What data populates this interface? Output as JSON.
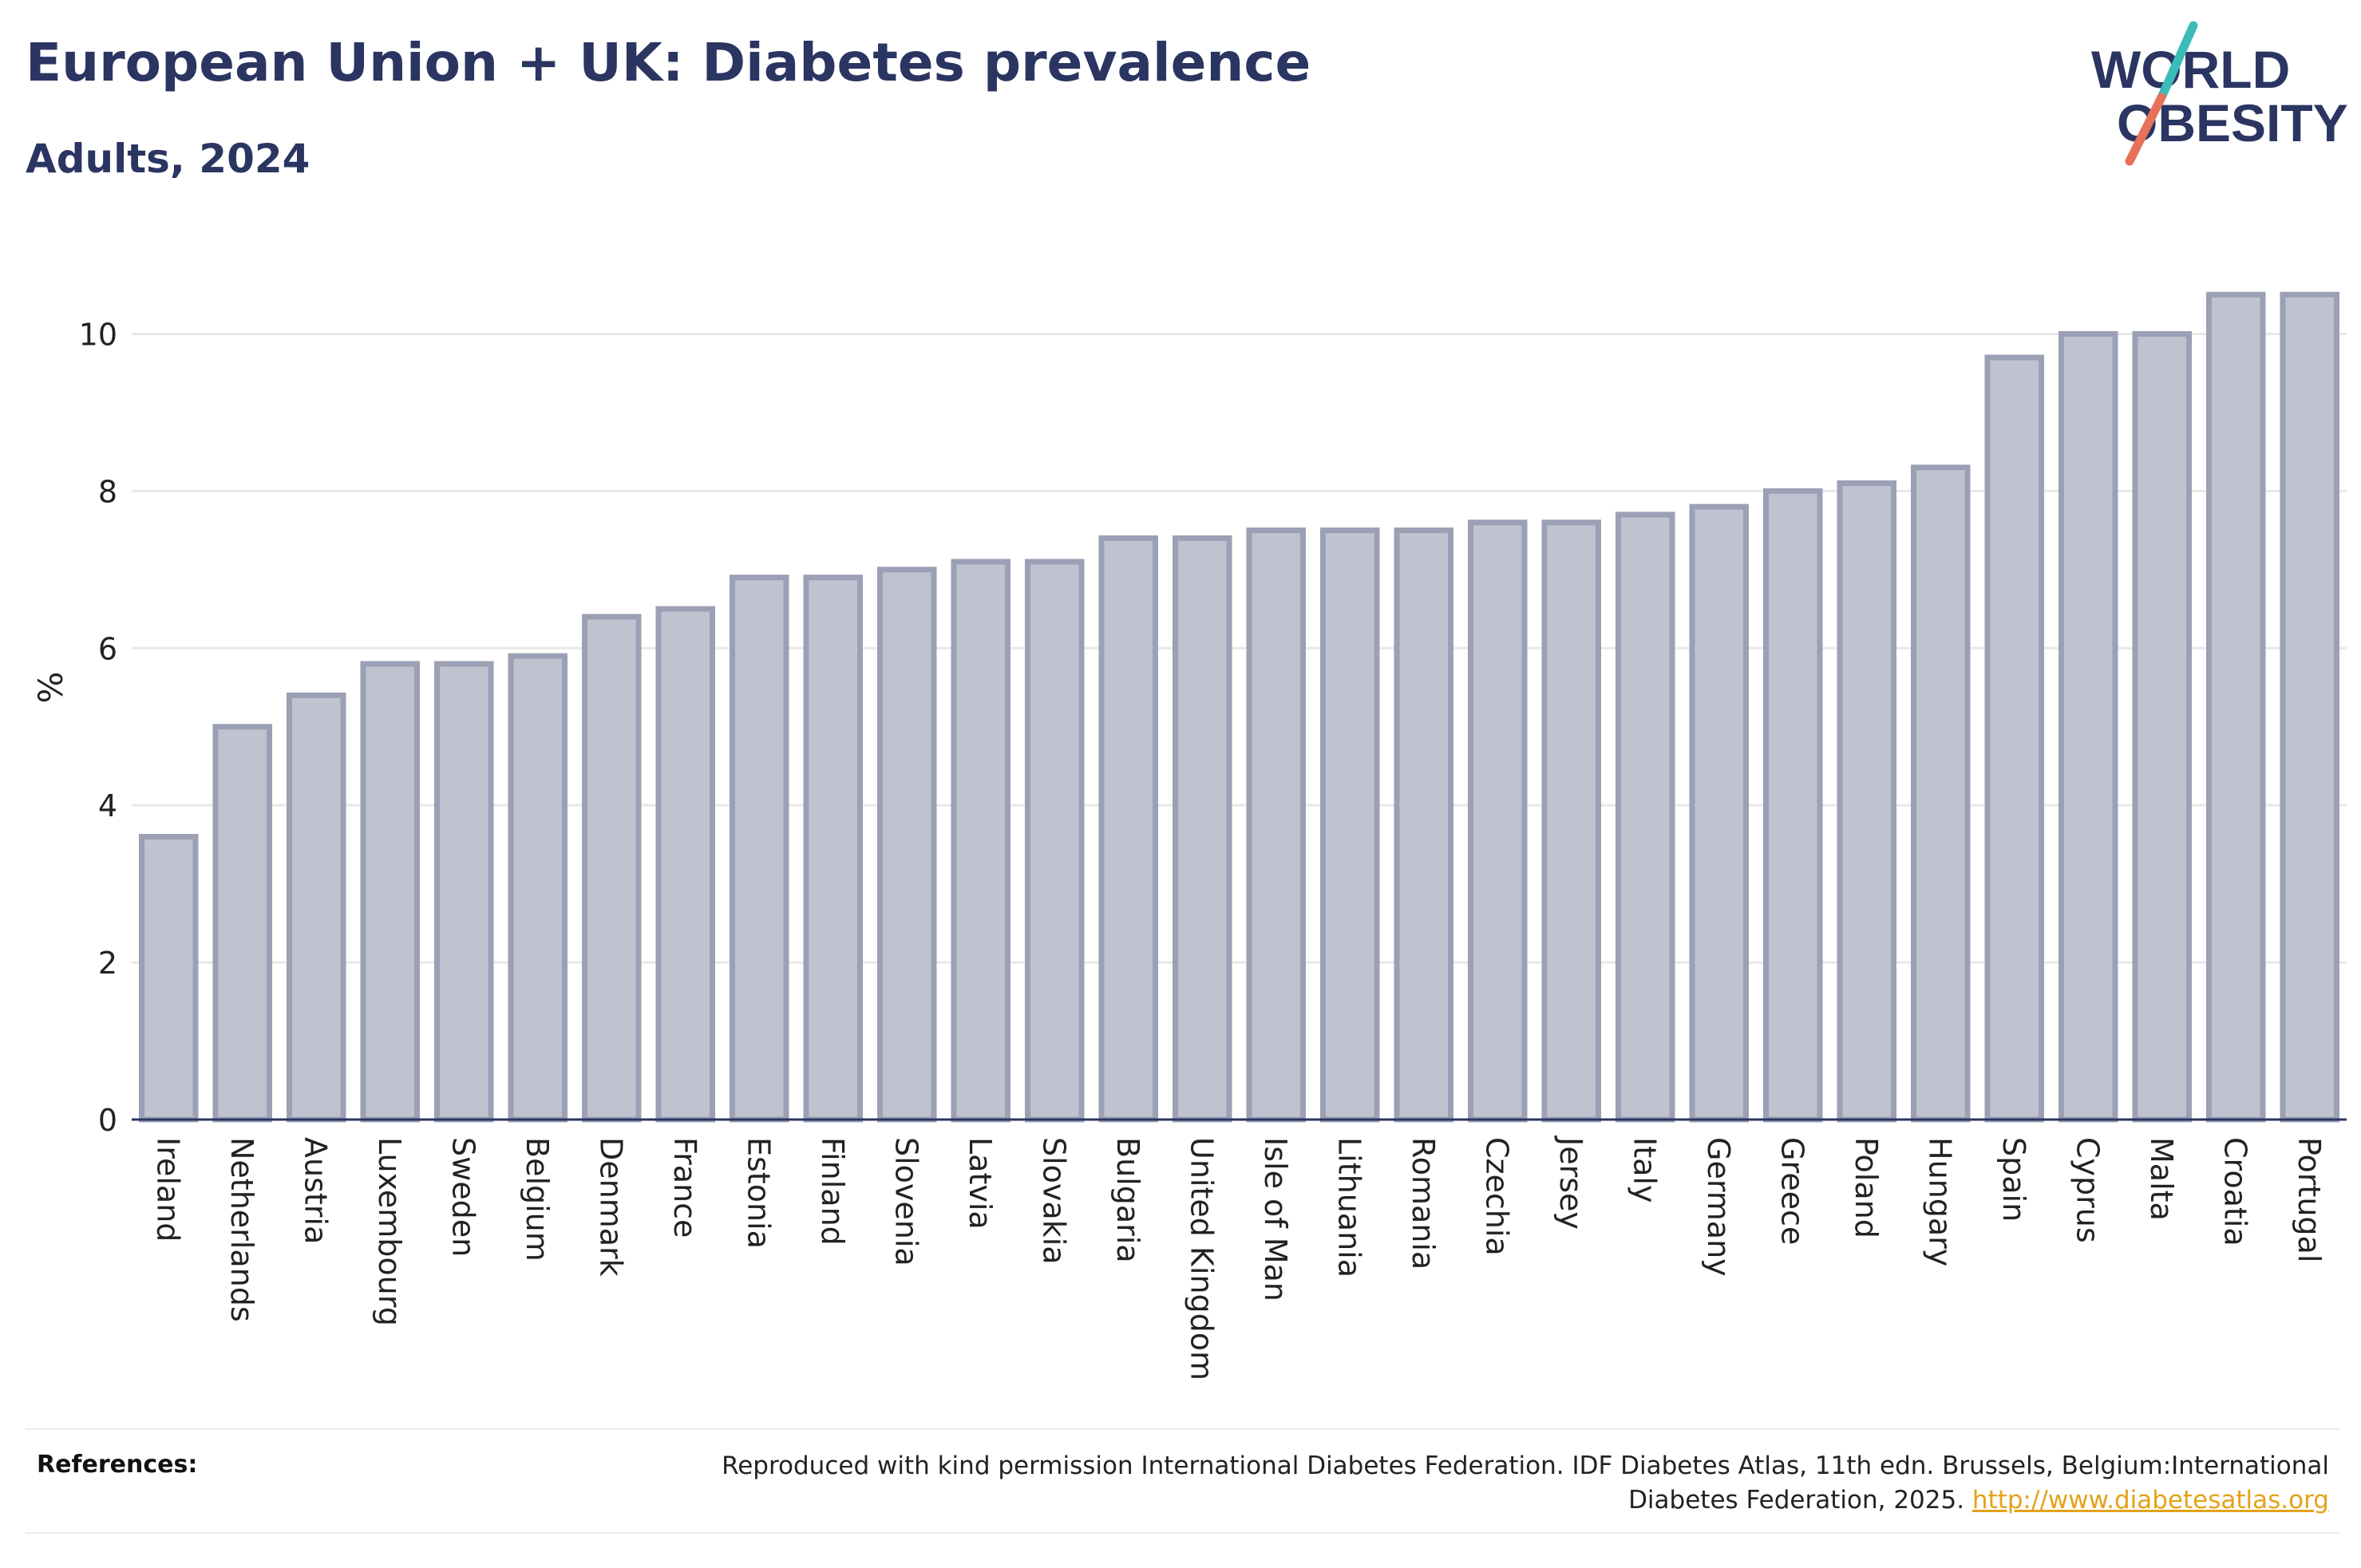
{
  "header": {
    "title": "European Union + UK: Diabetes prevalence",
    "subtitle": "Adults, 2024"
  },
  "logo": {
    "line1": "WORLD",
    "line2": "OBESITY",
    "colors": {
      "text": "#2b3561",
      "slash_top": "#3bbcb8",
      "slash_bottom": "#e8715a"
    }
  },
  "chart_data": {
    "type": "bar",
    "categories": [
      "Ireland",
      "Netherlands",
      "Austria",
      "Luxembourg",
      "Sweden",
      "Belgium",
      "Denmark",
      "France",
      "Estonia",
      "Finland",
      "Slovenia",
      "Latvia",
      "Slovakia",
      "Bulgaria",
      "United Kingdom",
      "Isle of Man",
      "Lithuania",
      "Romania",
      "Czechia",
      "Jersey",
      "Italy",
      "Germany",
      "Greece",
      "Poland",
      "Hungary",
      "Spain",
      "Cyprus",
      "Malta",
      "Croatia",
      "Portugal"
    ],
    "values": [
      3.6,
      5.0,
      5.4,
      5.8,
      5.8,
      5.9,
      6.4,
      6.5,
      6.9,
      6.9,
      7.0,
      7.1,
      7.1,
      7.4,
      7.4,
      7.5,
      7.5,
      7.5,
      7.6,
      7.6,
      7.7,
      7.8,
      8.0,
      8.1,
      8.3,
      9.7,
      10.0,
      10.0,
      10.5,
      10.5
    ],
    "ylabel": "%",
    "ylim": [
      0,
      11
    ],
    "yticks": [
      0,
      2,
      4,
      6,
      8,
      10
    ],
    "grid": true,
    "colors": {
      "bar_fill": "#bfc2cf",
      "bar_stroke": "#9ba0b5",
      "axis": "#2b3561",
      "grid": "#e8e8e8"
    }
  },
  "references": {
    "label": "References:",
    "text": "Reproduced with kind permission International Diabetes Federation. IDF Diabetes Atlas, 11th edn. Brussels, Belgium:International Diabetes Federation, 2025. ",
    "link": "http://www.diabetesatlas.org"
  }
}
